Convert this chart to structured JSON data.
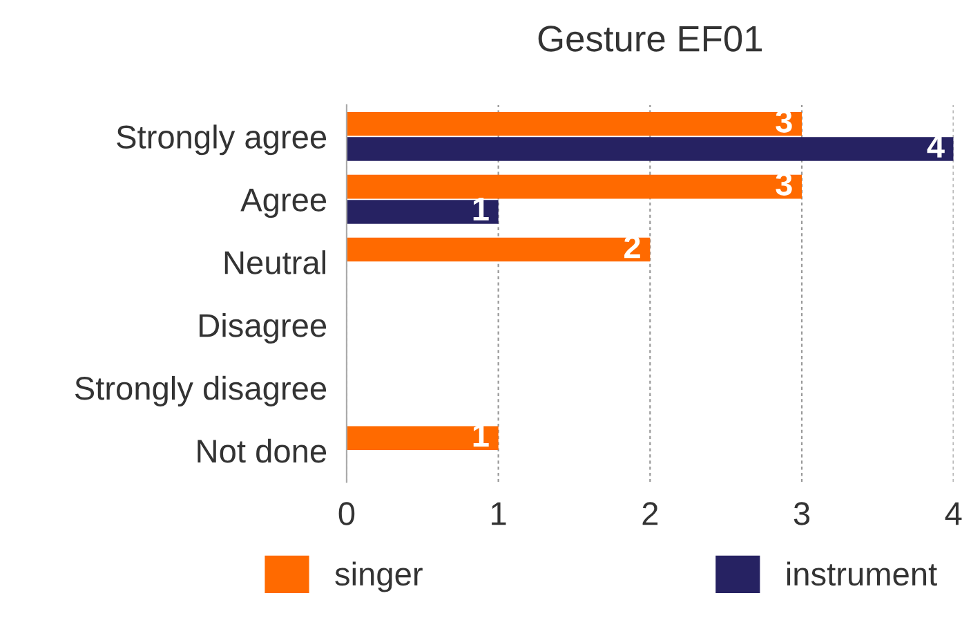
{
  "chart_data": {
    "type": "bar",
    "orientation": "horizontal",
    "title": "Gesture EF01",
    "categories": [
      "Strongly agree",
      "Agree",
      "Neutral",
      "Disagree",
      "Strongly disagree",
      "Not done"
    ],
    "series": [
      {
        "name": "singer",
        "color": "#ff6a00",
        "values": [
          3,
          3,
          2,
          0,
          0,
          1
        ],
        "value_labels": [
          "3",
          "3",
          "2",
          null,
          null,
          "1"
        ]
      },
      {
        "name": "instrument",
        "color": "#262262",
        "values": [
          4,
          1,
          0,
          0,
          0,
          0
        ],
        "value_labels": [
          "4",
          "1",
          null,
          null,
          null,
          null
        ]
      }
    ],
    "xlim": [
      0,
      4
    ],
    "xticks": [
      0,
      1,
      2,
      3,
      4
    ],
    "grid": "x",
    "legend": "bottom"
  }
}
